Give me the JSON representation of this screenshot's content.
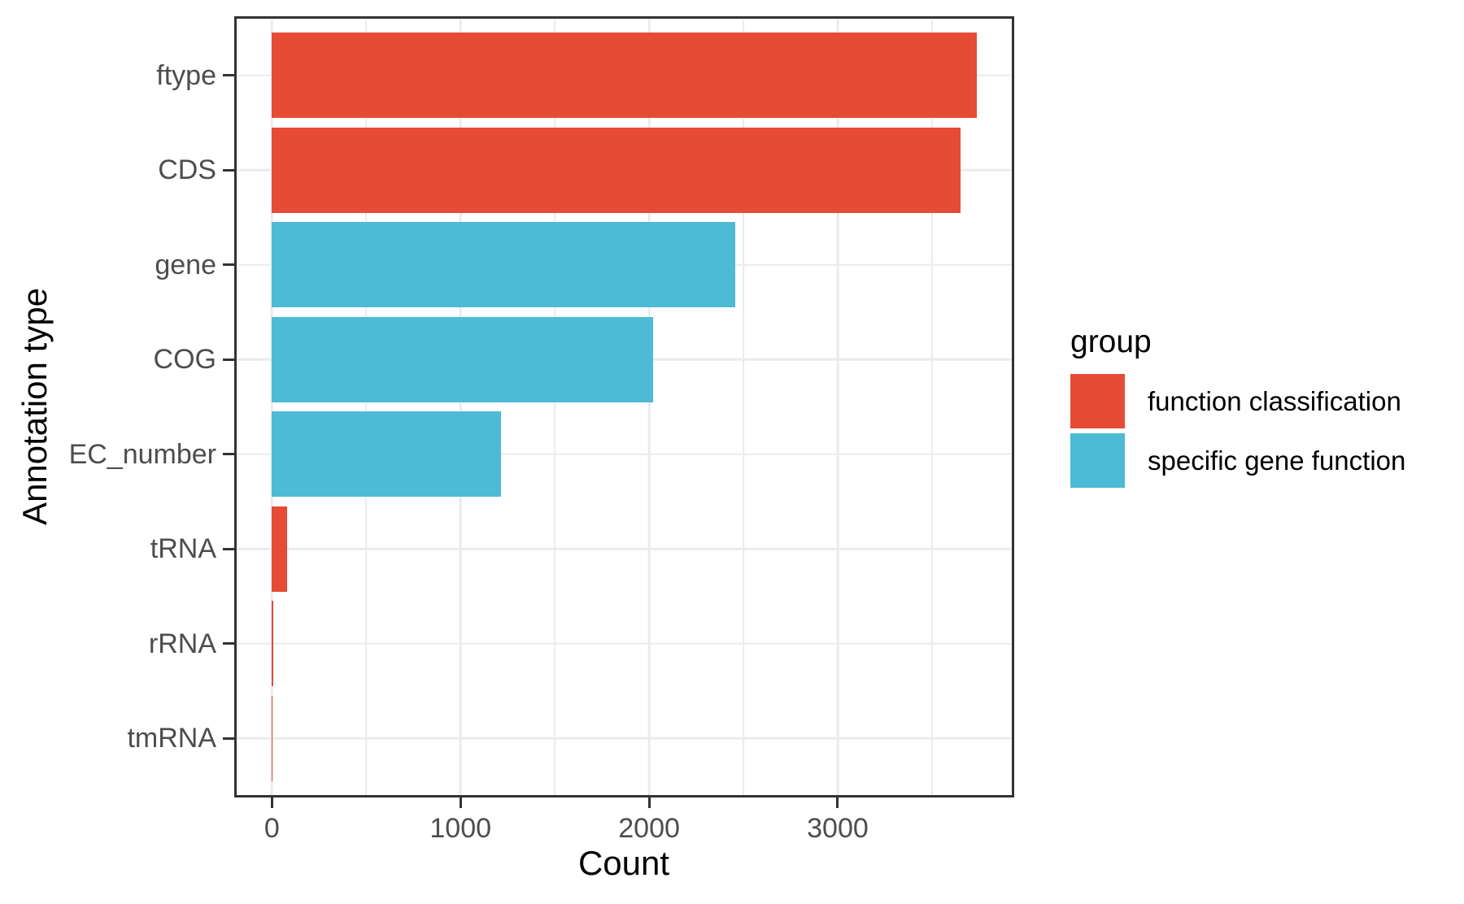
{
  "colors": {
    "red": "#E64B35",
    "teal": "#4DBBD5",
    "grid": "#EBEBEB",
    "panel_border": "#333333",
    "axis_text": "#4D4D4D",
    "title_text": "#000000",
    "background": "#FFFFFF"
  },
  "chart_data": {
    "type": "bar",
    "orientation": "horizontal",
    "xlabel": "Count",
    "ylabel": "Annotation type",
    "categories": [
      "ftype",
      "CDS",
      "gene",
      "COG",
      "EC_number",
      "tRNA",
      "rRNA",
      "tmRNA"
    ],
    "values": [
      3736,
      3650,
      2456,
      2020,
      1215,
      80,
      5,
      1
    ],
    "groups": [
      "function classification",
      "function classification",
      "specific gene function",
      "specific gene function",
      "specific gene function",
      "function classification",
      "function classification",
      "function classification"
    ],
    "group_colors": {
      "function classification": "#E64B35",
      "specific gene function": "#4DBBD5"
    },
    "x_ticks": [
      0,
      1000,
      2000,
      3000
    ],
    "x_tick_labels": [
      "0",
      "1000",
      "2000",
      "3000"
    ],
    "x_minor_ticks": [
      500,
      1500,
      2500,
      3500
    ],
    "xlim": [
      -187,
      3923
    ],
    "bar_fraction": 0.9,
    "band_expansion": 0.6,
    "grid": "major-and-minor-x, major-y",
    "legend": {
      "title": "group",
      "position": "right",
      "items": [
        {
          "label": "function classification",
          "color": "#E64B35"
        },
        {
          "label": "specific gene function",
          "color": "#4DBBD5"
        }
      ]
    }
  }
}
